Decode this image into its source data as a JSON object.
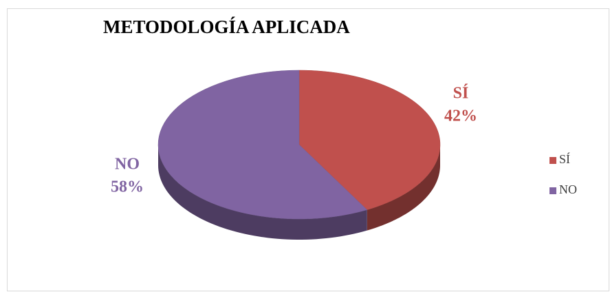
{
  "chart_data": {
    "type": "pie",
    "title": "METODOLOGÍA APLICADA",
    "categories": [
      "SÍ",
      "NO"
    ],
    "values": [
      42,
      58
    ],
    "value_labels": [
      "42%",
      "58%"
    ],
    "colors": [
      "#c0504d",
      "#8064a2"
    ],
    "legend": "right"
  }
}
